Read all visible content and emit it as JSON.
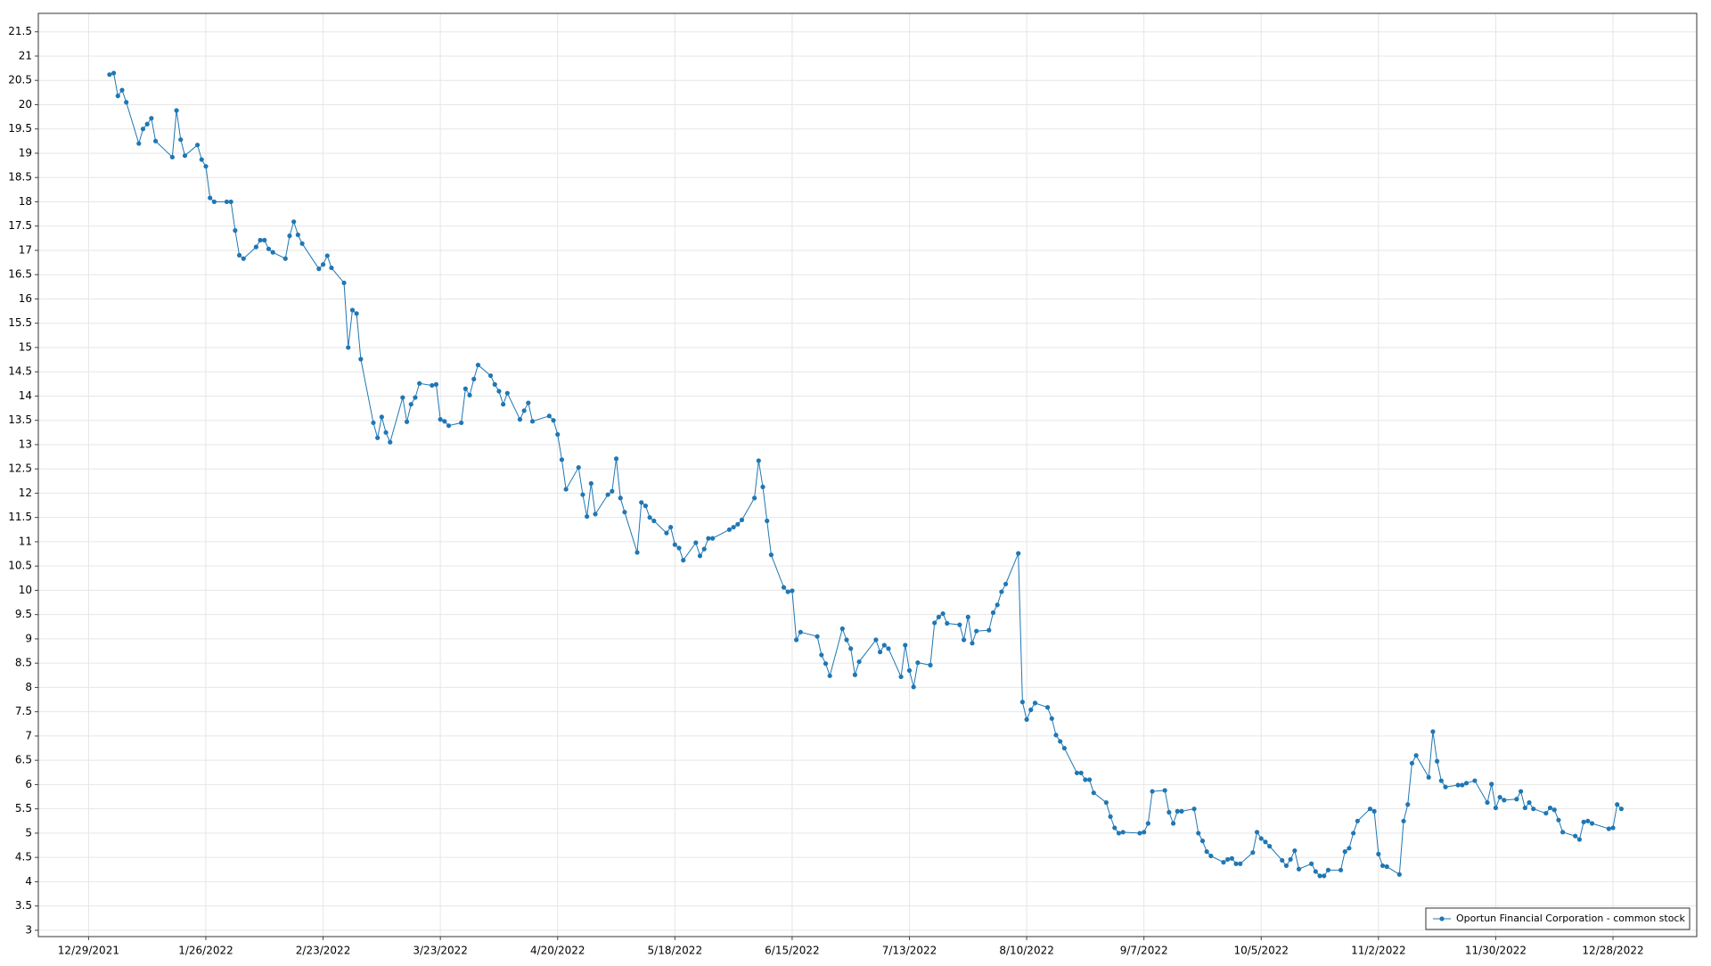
{
  "chart_data": {
    "type": "line",
    "x": [
      "1/3/2022",
      "1/4/2022",
      "1/5/2022",
      "1/6/2022",
      "1/7/2022",
      "1/10/2022",
      "1/11/2022",
      "1/12/2022",
      "1/13/2022",
      "1/14/2022",
      "1/18/2022",
      "1/19/2022",
      "1/20/2022",
      "1/21/2022",
      "1/24/2022",
      "1/25/2022",
      "1/26/2022",
      "1/27/2022",
      "1/28/2022",
      "1/31/2022",
      "2/1/2022",
      "2/2/2022",
      "2/3/2022",
      "2/4/2022",
      "2/7/2022",
      "2/8/2022",
      "2/9/2022",
      "2/10/2022",
      "2/11/2022",
      "2/14/2022",
      "2/15/2022",
      "2/16/2022",
      "2/17/2022",
      "2/18/2022",
      "2/22/2022",
      "2/23/2022",
      "2/24/2022",
      "2/25/2022",
      "2/28/2022",
      "3/1/2022",
      "3/2/2022",
      "3/3/2022",
      "3/4/2022",
      "3/7/2022",
      "3/8/2022",
      "3/9/2022",
      "3/10/2022",
      "3/11/2022",
      "3/14/2022",
      "3/15/2022",
      "3/16/2022",
      "3/17/2022",
      "3/18/2022",
      "3/21/2022",
      "3/22/2022",
      "3/23/2022",
      "3/24/2022",
      "3/25/2022",
      "3/28/2022",
      "3/29/2022",
      "3/30/2022",
      "3/31/2022",
      "4/1/2022",
      "4/4/2022",
      "4/5/2022",
      "4/6/2022",
      "4/7/2022",
      "4/8/2022",
      "4/11/2022",
      "4/12/2022",
      "4/13/2022",
      "4/14/2022",
      "4/18/2022",
      "4/19/2022",
      "4/20/2022",
      "4/21/2022",
      "4/22/2022",
      "4/25/2022",
      "4/26/2022",
      "4/27/2022",
      "4/28/2022",
      "4/29/2022",
      "5/2/2022",
      "5/3/2022",
      "5/4/2022",
      "5/5/2022",
      "5/6/2022",
      "5/9/2022",
      "5/10/2022",
      "5/11/2022",
      "5/12/2022",
      "5/13/2022",
      "5/16/2022",
      "5/17/2022",
      "5/18/2022",
      "5/19/2022",
      "5/20/2022",
      "5/23/2022",
      "5/24/2022",
      "5/25/2022",
      "5/26/2022",
      "5/27/2022",
      "5/31/2022",
      "6/1/2022",
      "6/2/2022",
      "6/3/2022",
      "6/6/2022",
      "6/7/2022",
      "6/8/2022",
      "6/9/2022",
      "6/10/2022",
      "6/13/2022",
      "6/14/2022",
      "6/15/2022",
      "6/16/2022",
      "6/17/2022",
      "6/21/2022",
      "6/22/2022",
      "6/23/2022",
      "6/24/2022",
      "6/27/2022",
      "6/28/2022",
      "6/29/2022",
      "6/30/2022",
      "7/1/2022",
      "7/5/2022",
      "7/6/2022",
      "7/7/2022",
      "7/8/2022",
      "7/11/2022",
      "7/12/2022",
      "7/13/2022",
      "7/14/2022",
      "7/15/2022",
      "7/18/2022",
      "7/19/2022",
      "7/20/2022",
      "7/21/2022",
      "7/22/2022",
      "7/25/2022",
      "7/26/2022",
      "7/27/2022",
      "7/28/2022",
      "7/29/2022",
      "8/1/2022",
      "8/2/2022",
      "8/3/2022",
      "8/4/2022",
      "8/5/2022",
      "8/8/2022",
      "8/9/2022",
      "8/10/2022",
      "8/11/2022",
      "8/12/2022",
      "8/15/2022",
      "8/16/2022",
      "8/17/2022",
      "8/18/2022",
      "8/19/2022",
      "8/22/2022",
      "8/23/2022",
      "8/24/2022",
      "8/25/2022",
      "8/26/2022",
      "8/29/2022",
      "8/30/2022",
      "8/31/2022",
      "9/1/2022",
      "9/2/2022",
      "9/6/2022",
      "9/7/2022",
      "9/8/2022",
      "9/9/2022",
      "9/12/2022",
      "9/13/2022",
      "9/14/2022",
      "9/15/2022",
      "9/16/2022",
      "9/19/2022",
      "9/20/2022",
      "9/21/2022",
      "9/22/2022",
      "9/23/2022",
      "9/26/2022",
      "9/27/2022",
      "9/28/2022",
      "9/29/2022",
      "9/30/2022",
      "10/3/2022",
      "10/4/2022",
      "10/5/2022",
      "10/6/2022",
      "10/7/2022",
      "10/10/2022",
      "10/11/2022",
      "10/12/2022",
      "10/13/2022",
      "10/14/2022",
      "10/17/2022",
      "10/18/2022",
      "10/19/2022",
      "10/20/2022",
      "10/21/2022",
      "10/24/2022",
      "10/25/2022",
      "10/26/2022",
      "10/27/2022",
      "10/28/2022",
      "10/31/2022",
      "11/1/2022",
      "11/2/2022",
      "11/3/2022",
      "11/4/2022",
      "11/7/2022",
      "11/8/2022",
      "11/9/2022",
      "11/10/2022",
      "11/11/2022",
      "11/14/2022",
      "11/15/2022",
      "11/16/2022",
      "11/17/2022",
      "11/18/2022",
      "11/21/2022",
      "11/22/2022",
      "11/23/2022",
      "11/25/2022",
      "11/28/2022",
      "11/29/2022",
      "11/30/2022",
      "12/1/2022",
      "12/2/2022",
      "12/5/2022",
      "12/6/2022",
      "12/7/2022",
      "12/8/2022",
      "12/9/2022",
      "12/12/2022",
      "12/13/2022",
      "12/14/2022",
      "12/15/2022",
      "12/16/2022",
      "12/19/2022",
      "12/20/2022",
      "12/21/2022",
      "12/22/2022",
      "12/23/2022",
      "12/27/2022",
      "12/28/2022",
      "12/29/2022",
      "12/30/2022"
    ],
    "series": [
      {
        "name": "Oportun Financial Corporation - common stock",
        "color": "#1f77b4",
        "values": [
          20.62,
          20.65,
          20.18,
          20.3,
          20.05,
          19.2,
          19.5,
          19.6,
          19.72,
          19.25,
          18.92,
          19.88,
          19.28,
          18.95,
          19.17,
          18.87,
          18.73,
          18.08,
          18.0,
          18.0,
          18.0,
          17.41,
          16.9,
          16.83,
          17.07,
          17.21,
          17.21,
          17.03,
          16.96,
          16.83,
          17.3,
          17.59,
          17.32,
          17.14,
          16.62,
          16.71,
          16.89,
          16.64,
          16.33,
          15.0,
          15.77,
          15.7,
          14.76,
          13.45,
          13.14,
          13.57,
          13.25,
          13.05,
          13.97,
          13.47,
          13.83,
          13.97,
          14.26,
          14.22,
          14.24,
          13.52,
          13.48,
          13.39,
          13.45,
          14.15,
          14.02,
          14.35,
          14.64,
          14.42,
          14.24,
          14.1,
          13.83,
          14.06,
          13.52,
          13.7,
          13.86,
          13.48,
          13.59,
          13.5,
          13.21,
          12.69,
          12.08,
          12.53,
          11.97,
          11.52,
          12.2,
          11.57,
          11.97,
          12.04,
          12.71,
          11.9,
          11.61,
          10.78,
          11.81,
          11.74,
          11.5,
          11.43,
          11.18,
          11.3,
          10.94,
          10.87,
          10.62,
          10.98,
          10.71,
          10.85,
          11.07,
          11.07,
          11.25,
          11.3,
          11.36,
          11.45,
          11.9,
          12.67,
          12.13,
          11.43,
          10.73,
          10.06,
          9.97,
          9.99,
          8.98,
          9.14,
          9.05,
          8.67,
          8.49,
          8.24,
          9.21,
          8.98,
          8.8,
          8.26,
          8.53,
          8.98,
          8.73,
          8.87,
          8.8,
          8.22,
          8.87,
          8.35,
          8.01,
          8.51,
          8.46,
          9.33,
          9.45,
          9.52,
          9.32,
          9.29,
          8.98,
          9.45,
          8.91,
          9.16,
          9.18,
          9.54,
          9.7,
          9.97,
          10.13,
          10.76,
          7.7,
          7.34,
          7.54,
          7.68,
          7.59,
          7.36,
          7.02,
          6.89,
          6.75,
          6.24,
          6.24,
          6.1,
          6.1,
          5.83,
          5.63,
          5.34,
          5.11,
          5.0,
          5.02,
          5.0,
          5.02,
          5.2,
          5.86,
          5.88,
          5.43,
          5.2,
          5.45,
          5.45,
          5.5,
          5.0,
          4.84,
          4.62,
          4.53,
          4.4,
          4.46,
          4.48,
          4.37,
          4.37,
          4.6,
          5.02,
          4.89,
          4.82,
          4.73,
          4.44,
          4.33,
          4.46,
          4.64,
          4.26,
          4.37,
          4.21,
          4.12,
          4.12,
          4.24,
          4.24,
          4.62,
          4.69,
          5.0,
          5.25,
          5.5,
          5.45,
          4.57,
          4.33,
          4.31,
          4.15,
          5.25,
          5.59,
          6.44,
          6.6,
          6.15,
          7.09,
          6.48,
          6.08,
          5.95,
          5.99,
          5.99,
          6.03,
          6.08,
          5.63,
          6.01,
          5.52,
          5.74,
          5.68,
          5.7,
          5.86,
          5.52,
          5.63,
          5.5,
          5.41,
          5.52,
          5.48,
          5.27,
          5.02,
          4.94,
          4.87,
          5.23,
          5.25,
          5.2,
          5.09,
          5.11,
          5.59,
          5.5
        ]
      }
    ],
    "xlim": [
      "12/17/2021",
      "1/17/2023"
    ],
    "xticks": [
      "12/29/2021",
      "1/26/2022",
      "2/23/2022",
      "3/23/2022",
      "4/20/2022",
      "5/18/2022",
      "6/15/2022",
      "7/13/2022",
      "8/10/2022",
      "9/7/2022",
      "10/5/2022",
      "11/2/2022",
      "11/30/2022",
      "12/28/2022"
    ],
    "ylim": [
      2.87,
      21.88
    ],
    "yticks": [
      3,
      3.5,
      4,
      4.5,
      5,
      5.5,
      6,
      6.5,
      7,
      7.5,
      8,
      8.5,
      9,
      9.5,
      10,
      10.5,
      11,
      11.5,
      12,
      12.5,
      13,
      13.5,
      14,
      14.5,
      15,
      15.5,
      16,
      16.5,
      17,
      17.5,
      18,
      18.5,
      19,
      19.5,
      20,
      20.5,
      21,
      21.5
    ],
    "grid": true,
    "legend": "lower right"
  }
}
